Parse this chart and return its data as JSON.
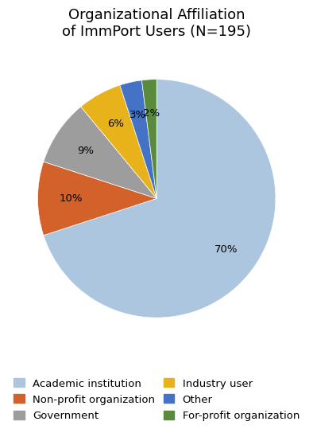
{
  "title": "Organizational Affiliation\nof ImmPort Users (N=195)",
  "slices": [
    {
      "label": "Academic institution",
      "pct": 70,
      "color": "#adc6e0"
    },
    {
      "label": "Non-profit organization",
      "pct": 10,
      "color": "#d2622a"
    },
    {
      "label": "Government",
      "pct": 9,
      "color": "#9d9d9d"
    },
    {
      "label": "Industry user",
      "pct": 6,
      "color": "#e8b31a"
    },
    {
      "label": "Other",
      "pct": 3,
      "color": "#4472c4"
    },
    {
      "label": "For-profit organization",
      "pct": 2,
      "color": "#5a8a3c"
    }
  ],
  "title_fontsize": 13,
  "label_fontsize": 9.5,
  "legend_fontsize": 9.5,
  "startangle": 90,
  "background_color": "#ffffff",
  "legend_col1": [
    0,
    2,
    4
  ],
  "legend_col2": [
    1,
    3,
    5
  ]
}
